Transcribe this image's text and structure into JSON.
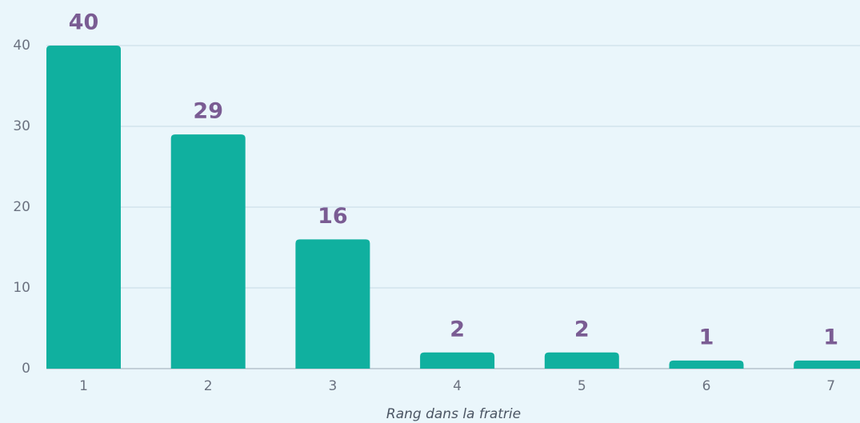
{
  "chart_data": {
    "type": "bar",
    "x_label": "Rang dans la fratrie",
    "categories": [
      "1",
      "2",
      "3",
      "4",
      "5",
      "6",
      "7"
    ],
    "values": [
      40,
      29,
      16,
      2,
      2,
      1,
      1
    ],
    "color": "#10b09f",
    "value_label_color": "#7a5c93",
    "ylim": [
      0,
      40
    ],
    "yticks": [
      0,
      10,
      20,
      30,
      40
    ],
    "grid": true
  }
}
